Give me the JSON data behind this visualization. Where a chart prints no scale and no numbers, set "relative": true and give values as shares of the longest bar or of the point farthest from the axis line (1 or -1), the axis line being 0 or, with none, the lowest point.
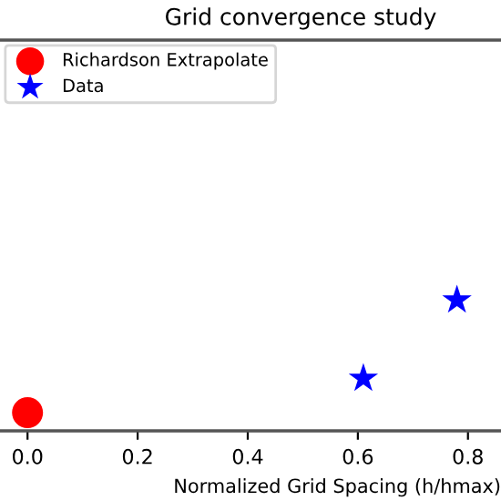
{
  "chart_data": {
    "type": "scatter",
    "title": "Grid convergence study",
    "xlabel": "Normalized Grid Spacing (h/hmax)",
    "relative": true,
    "xlim": [
      -0.05,
      0.86
    ],
    "xticks": [
      {
        "value": 0,
        "label": "0.0"
      },
      0.2,
      0.4,
      0.6,
      0.8
    ],
    "legend": "top left",
    "grid": false,
    "series": [
      {
        "name": "Richardson Extrapolate",
        "color": "#ff0000",
        "marker": "circle",
        "x": [
          0.0
        ],
        "values": [
          0.14
        ]
      },
      {
        "name": "Data",
        "color": "#0000ff",
        "marker": "star",
        "x": [
          0.61,
          0.78
        ],
        "values": [
          0.4,
          1.0
        ]
      }
    ]
  }
}
